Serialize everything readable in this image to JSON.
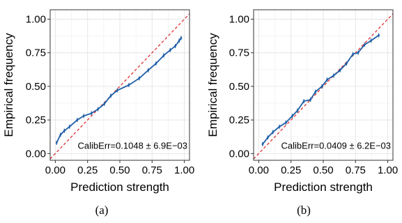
{
  "chart_data": [
    {
      "type": "line",
      "caption": "(a)",
      "xlabel": "Prediction strength",
      "ylabel": "Empirical frequency",
      "xlim": [
        -0.04,
        1.04
      ],
      "ylim": [
        -0.05,
        1.07
      ],
      "xticks": [
        "0.00",
        "0.25",
        "0.50",
        "0.75",
        "1.00"
      ],
      "yticks": [
        "0.00",
        "0.25",
        "0.50",
        "0.75",
        "1.00"
      ],
      "grid": true,
      "annotation": "CalibErr=0.1048 ± 6.9E−03",
      "colors": {
        "series": "#1f5fa8",
        "diagonal": "#e03030",
        "grid": "#e6e6e6",
        "border": "#333333"
      },
      "diagonal": {
        "style": "dashed",
        "x": [
          -0.04,
          1.04
        ],
        "y": [
          -0.04,
          1.04
        ]
      },
      "series": [
        {
          "x": [
            0.01,
            0.04,
            0.07,
            0.11,
            0.17,
            0.22,
            0.28,
            0.33,
            0.38,
            0.43,
            0.48,
            0.57,
            0.65,
            0.72,
            0.78,
            0.84,
            0.89,
            0.93,
            0.96,
            0.975
          ],
          "y": [
            0.08,
            0.14,
            0.17,
            0.2,
            0.25,
            0.28,
            0.3,
            0.33,
            0.37,
            0.43,
            0.47,
            0.51,
            0.56,
            0.62,
            0.67,
            0.73,
            0.77,
            0.8,
            0.84,
            0.86
          ]
        }
      ]
    },
    {
      "type": "line",
      "caption": "(b)",
      "xlabel": "Prediction strength",
      "ylabel": "Empirical frequency",
      "xlim": [
        -0.04,
        1.04
      ],
      "ylim": [
        -0.05,
        1.07
      ],
      "xticks": [
        "0.00",
        "0.25",
        "0.50",
        "0.75",
        "1.00"
      ],
      "yticks": [
        "0.00",
        "0.25",
        "0.50",
        "0.75",
        "1.00"
      ],
      "grid": true,
      "annotation": "CalibErr=0.0409 ± 6.2E−03",
      "colors": {
        "series": "#1f5fa8",
        "diagonal": "#e03030",
        "grid": "#e6e6e6",
        "border": "#333333"
      },
      "diagonal": {
        "style": "dashed",
        "x": [
          -0.04,
          1.04
        ],
        "y": [
          -0.04,
          1.04
        ]
      },
      "series": [
        {
          "x": [
            0.03,
            0.07,
            0.11,
            0.16,
            0.21,
            0.26,
            0.3,
            0.35,
            0.4,
            0.44,
            0.49,
            0.53,
            0.58,
            0.63,
            0.68,
            0.73,
            0.77,
            0.82,
            0.87,
            0.93
          ],
          "y": [
            0.07,
            0.12,
            0.16,
            0.2,
            0.23,
            0.28,
            0.32,
            0.39,
            0.4,
            0.46,
            0.5,
            0.55,
            0.58,
            0.62,
            0.67,
            0.74,
            0.75,
            0.81,
            0.84,
            0.88
          ]
        }
      ]
    }
  ]
}
